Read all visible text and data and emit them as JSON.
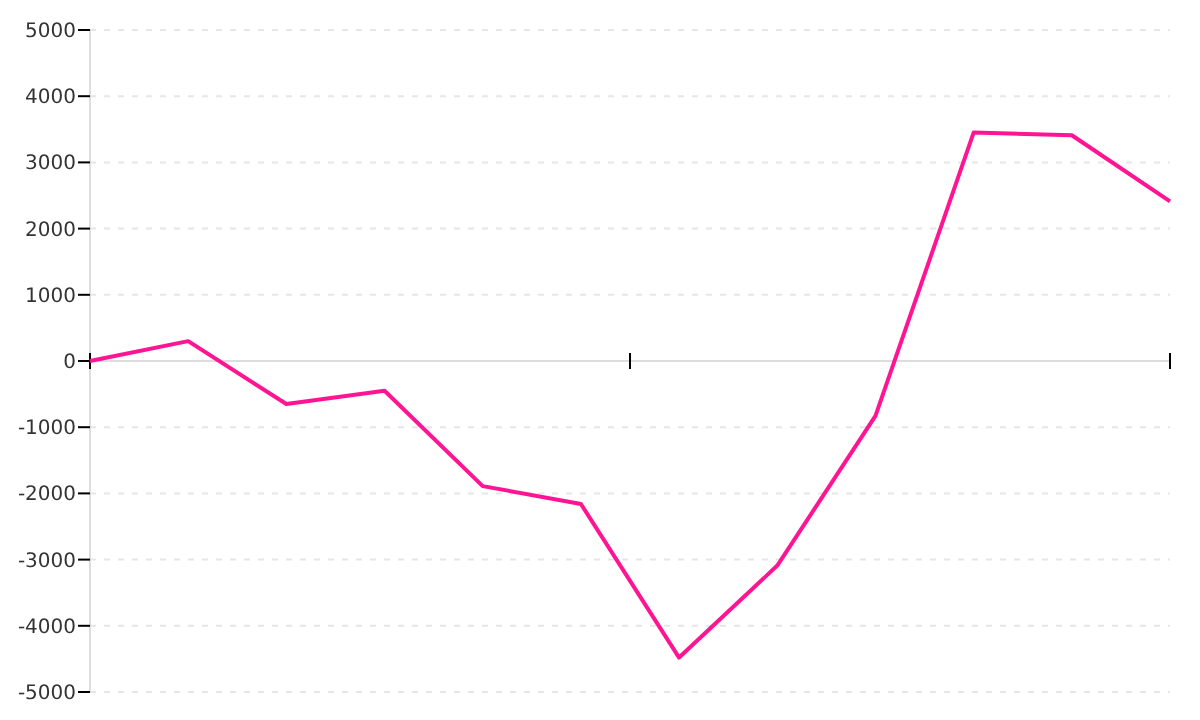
{
  "chart_data": {
    "type": "line",
    "categories": [
      null,
      null,
      null,
      null,
      null,
      null,
      null,
      null,
      null,
      null,
      null,
      null
    ],
    "series": [
      {
        "color": "#ff1493",
        "values": [
          0,
          300,
          -650,
          -450,
          -1890,
          -2160,
          -4480,
          -3090,
          -830,
          3450,
          3410,
          2410
        ]
      }
    ],
    "ylim": [
      -5000,
      5000
    ],
    "yticks": [
      -5000,
      -4000,
      -3000,
      -2000,
      -1000,
      0,
      1000,
      2000,
      3000,
      4000,
      5000
    ],
    "grid": "y",
    "tick_labels": "y",
    "marker": "none",
    "line_style": "solid"
  }
}
